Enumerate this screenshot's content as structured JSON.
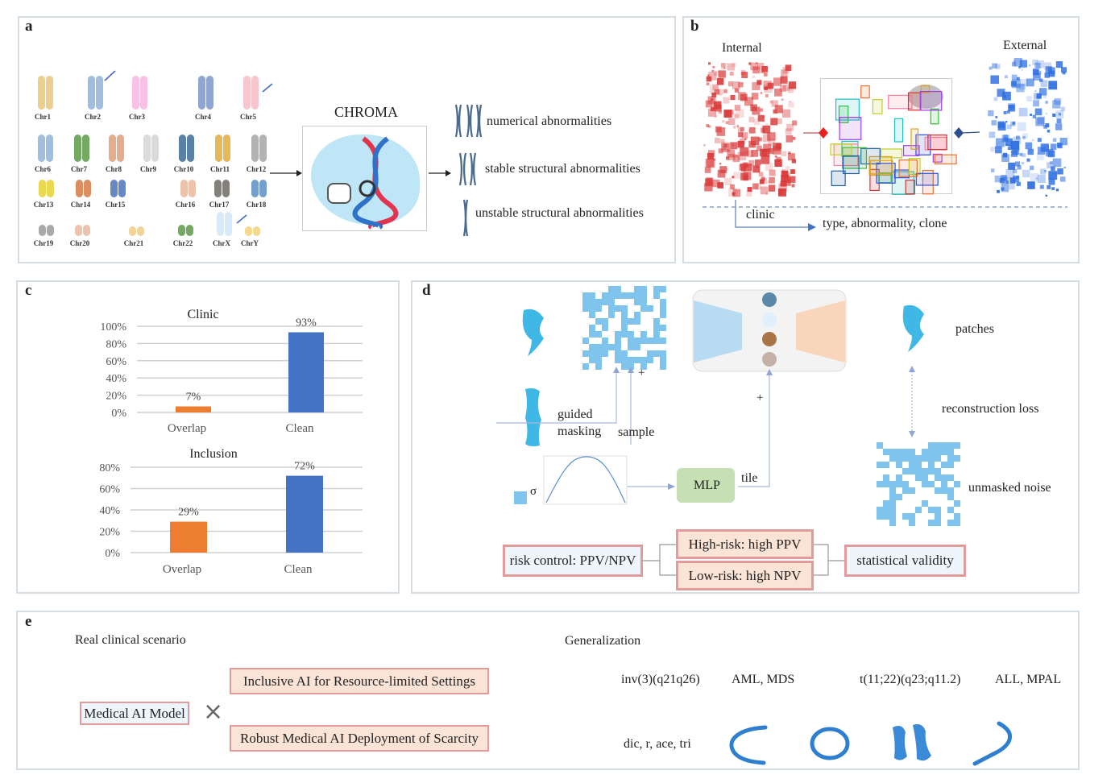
{
  "panels": {
    "a": "a",
    "b": "b",
    "c": "c",
    "d": "d",
    "e": "e"
  },
  "panel_a": {
    "chromosomes": [
      {
        "label": "Chr1",
        "color": "#e9c67a"
      },
      {
        "label": "Chr2",
        "color": "#8fb4d9"
      },
      {
        "label": "Chr3",
        "color": "#f7b6e0"
      },
      {
        "label": "Chr4",
        "color": "#7b97c9"
      },
      {
        "label": "Chr5",
        "color": "#f6bcc4"
      },
      {
        "label": "Chr6",
        "color": "#8fb4d9"
      },
      {
        "label": "Chr7",
        "color": "#5a9a45"
      },
      {
        "label": "Chr8",
        "color": "#de9f7a"
      },
      {
        "label": "Chr9",
        "color": "#d5d5d5"
      },
      {
        "label": "Chr10",
        "color": "#3c6b93"
      },
      {
        "label": "Chr11",
        "color": "#e0ac3c"
      },
      {
        "label": "Chr12",
        "color": "#a6a6a6"
      },
      {
        "label": "Chr13",
        "color": "#e8d133"
      },
      {
        "label": "Chr14",
        "color": "#d67a45"
      },
      {
        "label": "Chr15",
        "color": "#4d72c0"
      },
      {
        "label": "Chr16",
        "color": "#eab89c"
      },
      {
        "label": "Chr17",
        "color": "#6f6a64"
      },
      {
        "label": "Chr18",
        "color": "#5d8fc6"
      },
      {
        "label": "Chr19",
        "color": "#9a9a9a"
      },
      {
        "label": "Chr20",
        "color": "#eab89c"
      },
      {
        "label": "Chr21",
        "color": "#f0cc8a"
      },
      {
        "label": "Chr22",
        "color": "#5a9a45"
      },
      {
        "label": "ChrX",
        "color": "#cfe6f8"
      },
      {
        "label": "ChrY",
        "color": "#f0d27a"
      }
    ],
    "model_name": "CHROMA",
    "outputs": [
      "numerical abnormalities",
      "stable structural abnormalities",
      "unstable structural abnormalities"
    ]
  },
  "panel_b": {
    "internal_label": "Internal",
    "external_label": "External",
    "clinic_label": "clinic",
    "result_label": "type, abnormality, clone",
    "internal_color": "#d93a3a",
    "external_color": "#2f6fe0"
  },
  "chart_data": [
    {
      "type": "bar",
      "title": "Clinic",
      "categories": [
        "Overlap",
        "Clean"
      ],
      "values": [
        7,
        93
      ],
      "data_labels": [
        "7%",
        "93%"
      ],
      "ylim": [
        0,
        100
      ],
      "yticks": [
        "0%",
        "20%",
        "40%",
        "60%",
        "80%",
        "100%"
      ],
      "colors": [
        "#ed7d31",
        "#4472c4"
      ],
      "grid": true,
      "xlabel": "",
      "ylabel": ""
    },
    {
      "type": "bar",
      "title": "Inclusion",
      "categories": [
        "Overlap",
        "Clean"
      ],
      "values": [
        29,
        72
      ],
      "data_labels": [
        "29%",
        "72%"
      ],
      "ylim": [
        0,
        80
      ],
      "yticks": [
        "0%",
        "20%",
        "40%",
        "60%",
        "80%"
      ],
      "colors": [
        "#ed7d31",
        "#4472c4"
      ],
      "grid": true,
      "xlabel": "",
      "ylabel": ""
    }
  ],
  "panel_d": {
    "plus": "+",
    "guided": "guided",
    "masking": "masking",
    "sample": "sample",
    "sigma": "σ",
    "mlp": "MLP",
    "tile": "tile",
    "patches": "patches",
    "reconstruction_loss": "reconstruction loss",
    "unmasked_noise": "unmasked noise",
    "risk_control": "risk control: PPV/NPV",
    "high_risk": "High-risk: high PPV",
    "low_risk": "Low-risk: high NPV",
    "statistical_validity": "statistical validity"
  },
  "panel_e": {
    "real_scenario": "Real clinical scenario",
    "generalization": "Generalization",
    "medical_ai_model": "Medical AI Model",
    "times": "×",
    "inclusive": "Inclusive AI for Resource-limited Settings",
    "robust": "Robust Medical AI Deployment of Scarcity",
    "inv3": "inv(3)(q21q26)",
    "inv3_diseases": "AML, MDS",
    "t1122": "t(11;22)(q23;q11.2)",
    "t1122_diseases": "ALL, MPAL",
    "structural": "dic, r, ace, tri"
  }
}
